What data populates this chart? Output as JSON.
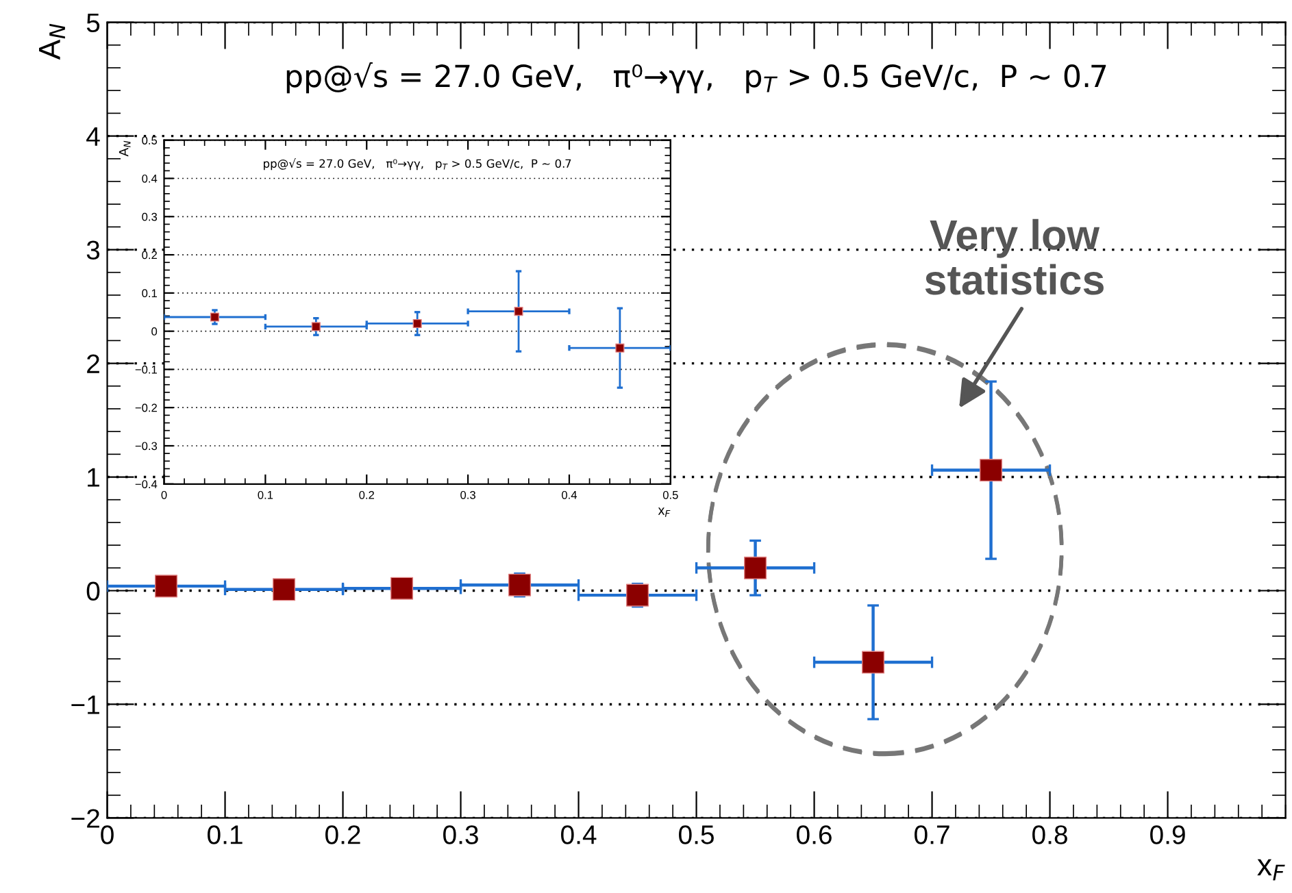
{
  "chart_data": [
    {
      "type": "scatter",
      "xlabel": "x$_{F}$",
      "ylabel": "A$_{N}$",
      "xlim": [
        0,
        1
      ],
      "ylim": [
        -2,
        5
      ],
      "xticks": [
        0,
        0.1,
        0.2,
        0.3,
        0.4,
        0.5,
        0.6,
        0.7,
        0.8,
        0.9
      ],
      "yticks": [
        -2,
        -1,
        0,
        1,
        2,
        3,
        4,
        5
      ],
      "grid": "y",
      "marker": "square",
      "annotations": [
        "pp@√s = 27.0 GeV,   π⁰→γγ,   p$_{T}$ > 0.5 GeV/c,  P ~ 0.7",
        "Very low\nstatistics"
      ],
      "series": [
        {
          "color": "#8b0000",
          "x": [
            0.05,
            0.15,
            0.25,
            0.35,
            0.45,
            0.55,
            0.65,
            0.75
          ],
          "values": [
            0.04,
            0.01,
            0.02,
            0.05,
            -0.04,
            0.2,
            -0.63,
            1.06
          ],
          "errors": [
            null,
            null,
            null,
            0.1,
            0.1,
            0.24,
            0.5,
            0.78
          ],
          "xerrors": [
            0.05,
            0.05,
            0.05,
            0.05,
            0.05,
            0.05,
            0.05,
            0.05
          ]
        }
      ]
    },
    {
      "type": "scatter",
      "xlabel": "x$_{F}$",
      "ylabel": "A$_{N}$",
      "xlim": [
        0,
        0.5
      ],
      "ylim": [
        -0.4,
        0.5
      ],
      "xticks": [
        0,
        0.1,
        0.2,
        0.3,
        0.4,
        0.5
      ],
      "yticks": [
        -0.4,
        -0.3,
        -0.2,
        -0.1,
        0,
        0.1,
        0.2,
        0.3,
        0.4,
        0.5
      ],
      "grid": "y",
      "marker": "square",
      "annotations": [
        "pp@√s = 27.0 GeV,   π⁰→γγ,   p$_{T}$ > 0.5 GeV/c,  P ~ 0.7"
      ],
      "series": [
        {
          "color": "#8b0000",
          "x": [
            0.05,
            0.15,
            0.25,
            0.35,
            0.45
          ],
          "values": [
            0.037,
            0.012,
            0.02,
            0.052,
            -0.044
          ],
          "errors": [
            0.018,
            0.022,
            0.03,
            0.105,
            0.104
          ],
          "xerrors": [
            0.05,
            0.05,
            0.05,
            0.05,
            0.05
          ]
        }
      ]
    }
  ]
}
